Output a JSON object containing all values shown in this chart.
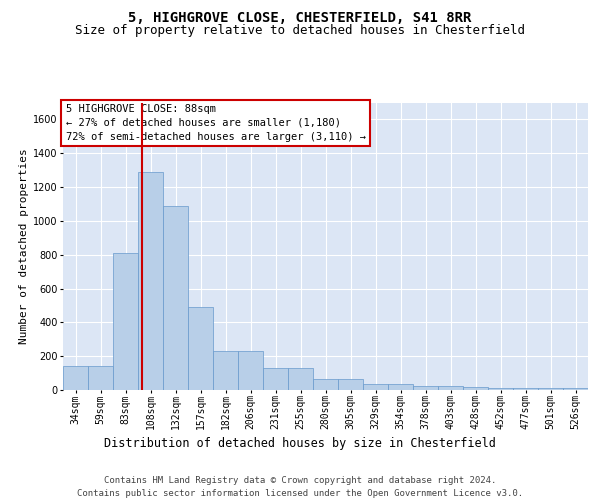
{
  "title_line1": "5, HIGHGROVE CLOSE, CHESTERFIELD, S41 8RR",
  "title_line2": "Size of property relative to detached houses in Chesterfield",
  "xlabel": "Distribution of detached houses by size in Chesterfield",
  "ylabel": "Number of detached properties",
  "footer_line1": "Contains HM Land Registry data © Crown copyright and database right 2024.",
  "footer_line2": "Contains public sector information licensed under the Open Government Licence v3.0.",
  "annotation_line1": "5 HIGHGROVE CLOSE: 88sqm",
  "annotation_line2": "← 27% of detached houses are smaller (1,180)",
  "annotation_line3": "72% of semi-detached houses are larger (3,110) →",
  "bar_values": [
    140,
    140,
    810,
    1290,
    1090,
    490,
    230,
    230,
    130,
    130,
    65,
    65,
    35,
    35,
    25,
    25,
    15,
    10,
    10,
    10,
    10
  ],
  "bin_labels": [
    "34sqm",
    "59sqm",
    "83sqm",
    "108sqm",
    "132sqm",
    "157sqm",
    "182sqm",
    "206sqm",
    "231sqm",
    "255sqm",
    "280sqm",
    "305sqm",
    "329sqm",
    "354sqm",
    "378sqm",
    "403sqm",
    "428sqm",
    "452sqm",
    "477sqm",
    "501sqm",
    "526sqm"
  ],
  "bar_color": "#b8cfe8",
  "bar_edge_color": "#6699cc",
  "vline_color": "#cc0000",
  "vline_x": 2.66,
  "ylim": [
    0,
    1700
  ],
  "yticks": [
    0,
    200,
    400,
    600,
    800,
    1000,
    1200,
    1400,
    1600
  ],
  "background_color": "#dce6f5",
  "grid_color": "#ffffff",
  "title_fontsize": 10,
  "subtitle_fontsize": 9,
  "ylabel_fontsize": 8,
  "xlabel_fontsize": 8.5,
  "tick_fontsize": 7,
  "annotation_fontsize": 7.5,
  "footer_fontsize": 6.5,
  "ann_bbox_color": "#cc0000"
}
